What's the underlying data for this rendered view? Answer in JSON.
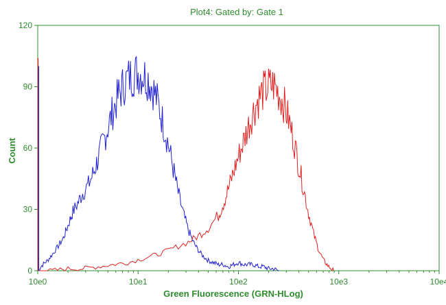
{
  "chart_data": {
    "type": "line",
    "title": "Plot4:  Gated by: Gate 1",
    "xlabel": "Green Fluorescence (GRN-HLog)",
    "ylabel": "Count",
    "x_scale": "log",
    "xlim": [
      1,
      10000
    ],
    "ylim": [
      0,
      120
    ],
    "x_ticks": [
      "10e0",
      "10e1",
      "10e2",
      "10e3",
      "10e4"
    ],
    "y_ticks": [
      "0",
      "30",
      "60",
      "90",
      "120"
    ],
    "grid": false,
    "series": [
      {
        "color": "#2020d0",
        "x": [
          1.0,
          1.12,
          1.25,
          1.4,
          1.6,
          1.8,
          2.0,
          2.2,
          2.5,
          2.8,
          3.2,
          3.6,
          4.0,
          4.5,
          5.0,
          5.6,
          6.3,
          7.0,
          7.9,
          8.9,
          10.0,
          11.2,
          12.6,
          14.1,
          15.8,
          17.8,
          20.0,
          22.4,
          25.1,
          28.2,
          31.6,
          35.5,
          39.8,
          44.7,
          50.1,
          56.2,
          63.1,
          70.8,
          79.4,
          89.1,
          100,
          112,
          126,
          141,
          158,
          178,
          200,
          224,
          251
        ],
        "y": [
          0,
          3,
          5,
          8,
          12,
          16,
          22,
          28,
          33,
          38,
          42,
          48,
          55,
          63,
          70,
          78,
          85,
          90,
          94,
          96,
          97,
          96,
          94,
          89,
          82,
          72,
          62,
          50,
          38,
          28,
          20,
          14,
          10,
          7,
          5,
          4,
          3,
          3,
          2,
          3,
          4,
          3,
          3,
          3,
          2,
          2,
          1,
          1,
          0
        ]
      },
      {
        "color": "#e02020",
        "x": [
          1.0,
          1.4,
          2.0,
          2.8,
          4.0,
          5.6,
          7.9,
          11.2,
          15.8,
          22.4,
          31.6,
          39.8,
          50.1,
          63.1,
          70.8,
          79.4,
          89.1,
          100,
          112,
          126,
          141,
          158,
          178,
          200,
          224,
          251,
          282,
          316,
          355,
          398,
          447,
          501,
          562,
          631,
          708,
          794,
          891
        ],
        "y": [
          0,
          0,
          1,
          1,
          2,
          3,
          4,
          6,
          8,
          11,
          14,
          17,
          21,
          27,
          33,
          40,
          48,
          56,
          63,
          71,
          78,
          84,
          88,
          90,
          91,
          87,
          82,
          74,
          64,
          52,
          40,
          28,
          18,
          10,
          5,
          2,
          0
        ]
      }
    ],
    "annotations": [
      {
        "series_color": "#e02020",
        "x": 1.0,
        "y": 104,
        "note": "spike"
      },
      {
        "series_color": "#2020d0",
        "x": 1.0,
        "y": 100,
        "note": "spike"
      }
    ]
  }
}
